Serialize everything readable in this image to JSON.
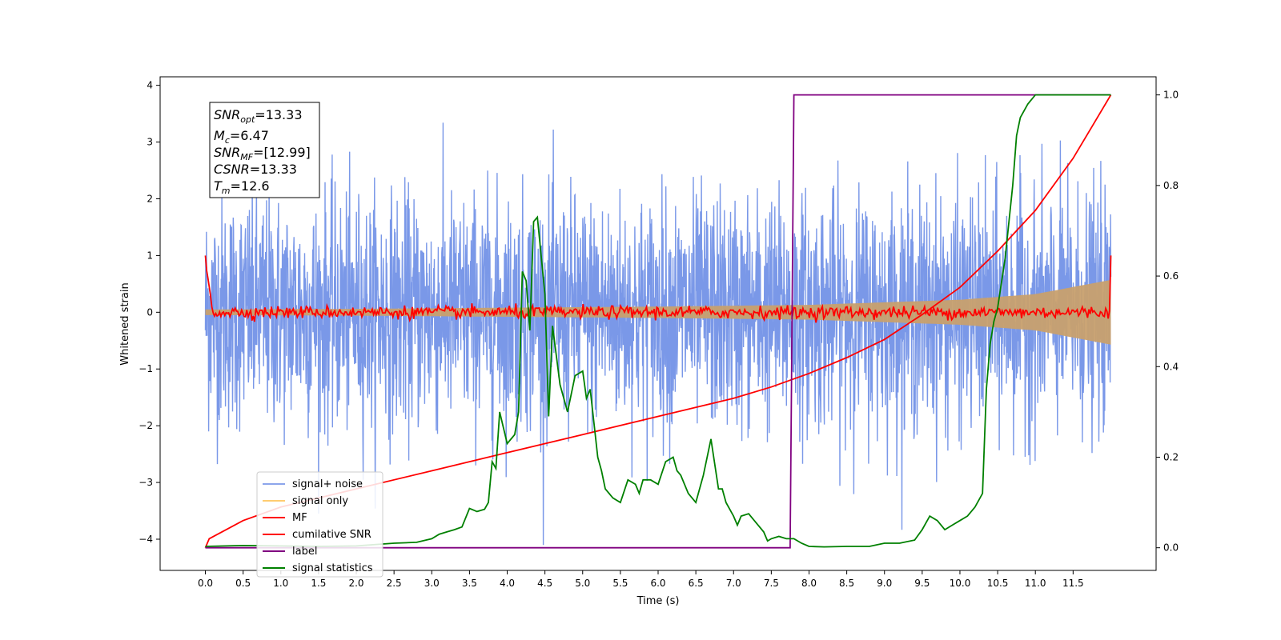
{
  "chart_data": {
    "type": "line",
    "xlabel": "Time (s)",
    "ylabel": "Whitened strain",
    "xlim": [
      -0.6,
      12.6
    ],
    "ylim": [
      -4.55,
      4.15
    ],
    "y2lim": [
      -0.05,
      1.04
    ],
    "x_ticks": [
      "0.0",
      "0.5",
      "1.0",
      "1.5",
      "2.0",
      "2.5",
      "3.0",
      "3.5",
      "4.0",
      "4.5",
      "5.0",
      "5.5",
      "6.0",
      "6.5",
      "7.0",
      "7.5",
      "8.0",
      "8.5",
      "9.0",
      "9.5",
      "10.0",
      "10.5",
      "11.0",
      "11.5"
    ],
    "y_ticks": [
      "4",
      "3",
      "2",
      "1",
      "0",
      "−1",
      "−2",
      "−3",
      "−4"
    ],
    "y2_ticks": [
      "1.0",
      "0.8",
      "0.6",
      "0.4",
      "0.2",
      "0.0"
    ],
    "grid": false,
    "legend_position": "lower-left",
    "annotation": {
      "snr_opt": "13.33",
      "mc": "6.47",
      "snr_mf": "[12.99]",
      "csnr": "13.33",
      "tm": "12.6"
    },
    "series": [
      {
        "name": "signal+ noise",
        "color": "#6f8fe6",
        "axis": "left",
        "description_values": "noise series ~ N(0,1) clipped to [-4.2, 3.7], t in [0, 12]",
        "duration": 12
      },
      {
        "name": "signal only",
        "color": "#ffc04d",
        "axis": "left",
        "envelope": {
          "t": [
            0,
            2,
            4,
            6,
            8,
            10,
            11,
            12
          ],
          "amp": [
            0.05,
            0.06,
            0.08,
            0.1,
            0.13,
            0.22,
            0.32,
            0.57
          ]
        }
      },
      {
        "name": "MF",
        "color": "#ff0000",
        "axis": "left",
        "start": 1.0,
        "end": 1.0
      },
      {
        "name": "cumilative SNR",
        "color": "#ff0000",
        "axis": "right",
        "x": [
          0,
          0.05,
          0.5,
          1.0,
          2.0,
          3.0,
          4.0,
          5.0,
          6.0,
          7.0,
          7.5,
          8.0,
          8.5,
          9.0,
          9.5,
          10.0,
          10.5,
          11.0,
          11.5,
          11.75,
          12.0
        ],
        "y": [
          0.0,
          0.02,
          0.06,
          0.09,
          0.13,
          0.17,
          0.21,
          0.25,
          0.29,
          0.33,
          0.355,
          0.385,
          0.42,
          0.46,
          0.515,
          0.575,
          0.655,
          0.745,
          0.86,
          0.93,
          1.0
        ]
      },
      {
        "name": "label",
        "color": "#800080",
        "axis": "right",
        "x": [
          0,
          7.75,
          7.8,
          12.0
        ],
        "y": [
          0,
          0,
          1,
          1
        ]
      },
      {
        "name": "signal statistics",
        "color": "#008000",
        "axis": "right",
        "x": [
          0,
          0.5,
          1.0,
          1.5,
          2.0,
          2.5,
          2.8,
          3.0,
          3.1,
          3.2,
          3.3,
          3.4,
          3.5,
          3.6,
          3.7,
          3.75,
          3.8,
          3.85,
          3.9,
          4.0,
          4.1,
          4.15,
          4.2,
          4.25,
          4.3,
          4.35,
          4.4,
          4.5,
          4.55,
          4.6,
          4.7,
          4.8,
          4.85,
          4.9,
          5.0,
          5.05,
          5.1,
          5.2,
          5.25,
          5.3,
          5.4,
          5.5,
          5.6,
          5.7,
          5.75,
          5.8,
          5.9,
          6.0,
          6.1,
          6.2,
          6.25,
          6.3,
          6.4,
          6.5,
          6.6,
          6.7,
          6.8,
          6.85,
          6.9,
          7.0,
          7.05,
          7.1,
          7.2,
          7.3,
          7.4,
          7.45,
          7.5,
          7.6,
          7.7,
          7.8,
          7.9,
          8.0,
          8.2,
          8.5,
          8.8,
          9.0,
          9.2,
          9.4,
          9.5,
          9.6,
          9.7,
          9.8,
          9.9,
          10.0,
          10.1,
          10.2,
          10.3,
          10.35,
          10.4,
          10.45,
          10.5,
          10.6,
          10.7,
          10.75,
          10.8,
          10.9,
          11.0,
          11.1,
          11.3,
          11.5,
          11.6,
          11.7,
          12.0
        ],
        "y": [
          0.003,
          0.005,
          0.004,
          0.003,
          0.004,
          0.01,
          0.012,
          0.02,
          0.03,
          0.035,
          0.04,
          0.046,
          0.087,
          0.08,
          0.085,
          0.1,
          0.19,
          0.175,
          0.3,
          0.23,
          0.25,
          0.3,
          0.61,
          0.59,
          0.48,
          0.72,
          0.73,
          0.56,
          0.29,
          0.49,
          0.36,
          0.3,
          0.34,
          0.38,
          0.39,
          0.33,
          0.35,
          0.2,
          0.17,
          0.13,
          0.11,
          0.1,
          0.15,
          0.14,
          0.12,
          0.15,
          0.15,
          0.14,
          0.19,
          0.2,
          0.17,
          0.16,
          0.12,
          0.1,
          0.16,
          0.24,
          0.13,
          0.13,
          0.1,
          0.07,
          0.05,
          0.07,
          0.075,
          0.055,
          0.035,
          0.015,
          0.02,
          0.025,
          0.02,
          0.02,
          0.01,
          0.003,
          0.002,
          0.003,
          0.003,
          0.01,
          0.01,
          0.017,
          0.04,
          0.07,
          0.06,
          0.04,
          0.05,
          0.06,
          0.07,
          0.09,
          0.12,
          0.35,
          0.45,
          0.5,
          0.53,
          0.64,
          0.8,
          0.91,
          0.95,
          0.98,
          1.0,
          1.0,
          1.0,
          1.0,
          1.0,
          1.0,
          1.0
        ]
      }
    ]
  }
}
